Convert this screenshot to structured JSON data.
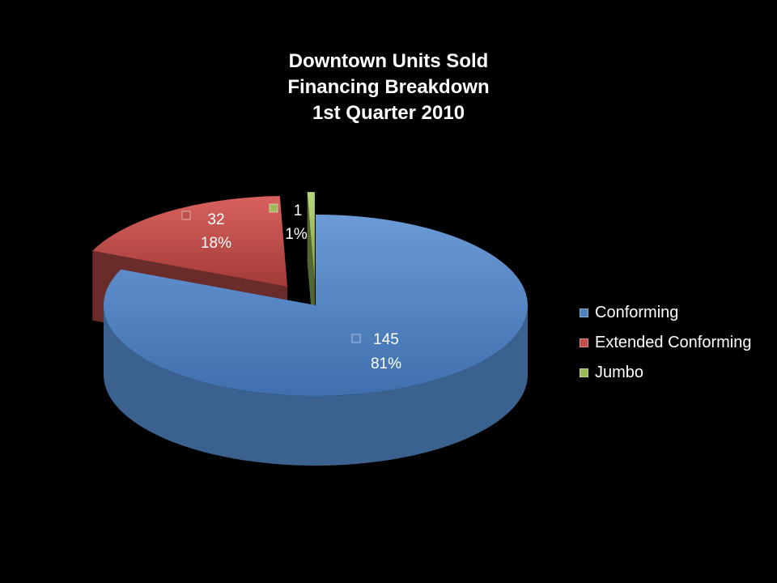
{
  "chart_data": {
    "type": "pie",
    "title_lines": [
      "Downtown Units Sold",
      "Financing Breakdown",
      "1st Quarter 2010"
    ],
    "slices": [
      {
        "name": "Conforming",
        "value": 145,
        "percent": "81%",
        "color": "#4f81bd",
        "exploded": false
      },
      {
        "name": "Extended Conforming",
        "value": 32,
        "percent": "18%",
        "color": "#c0504d",
        "exploded": true
      },
      {
        "name": "Jumbo",
        "value": 1,
        "percent": "1%",
        "color": "#9bbb59",
        "exploded": true
      }
    ],
    "legend_position": "right",
    "three_d": true
  }
}
